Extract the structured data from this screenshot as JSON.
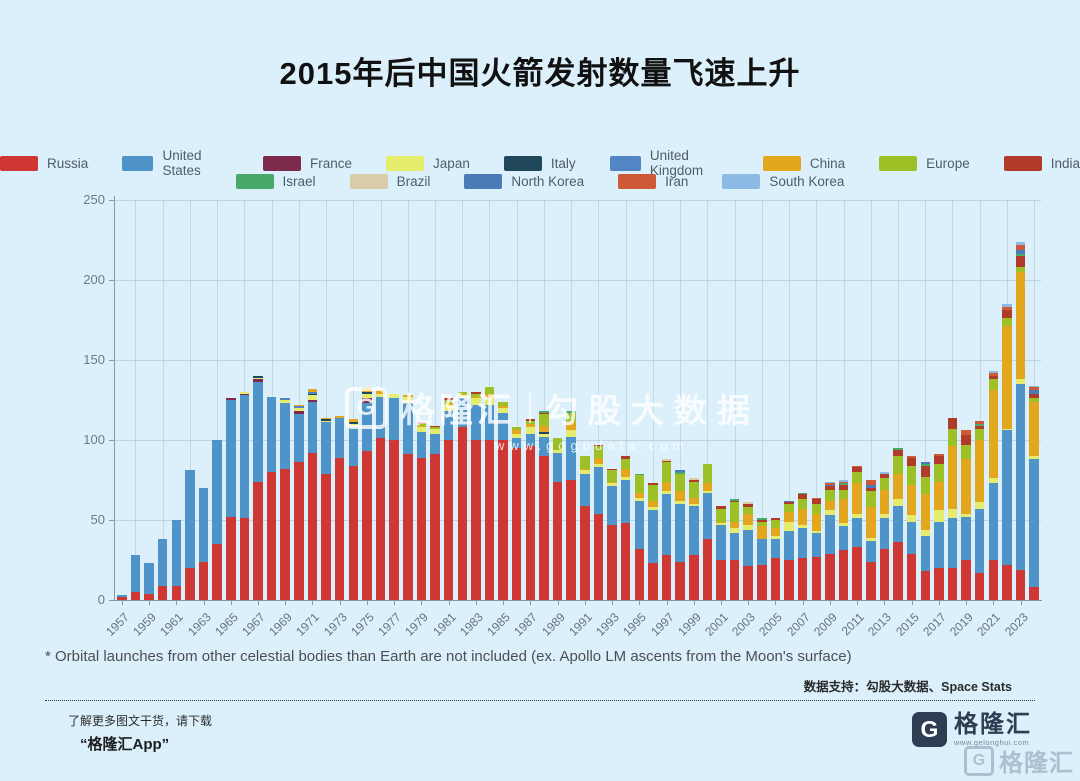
{
  "page": {
    "title": "2015年后中国火箭发射数量飞速上升",
    "footnote": "* Orbital launches from other celestial bodies than Earth are not included (ex. Apollo LM ascents from the Moon's surface)",
    "data_support": "数据支持：勾股大数据、Space Stats",
    "promo_line1": "了解更多图文干货，请下载",
    "promo_line2": "“格隆汇App”",
    "brand_g": "G",
    "brand_name": "格隆汇",
    "brand_url": "www.gelonghui.com",
    "corner_watermark": "格隆汇",
    "watermark_brand": "格隆汇",
    "watermark_name": "勾股大数据",
    "watermark_url": "www.gogudata.com"
  },
  "chart_data": {
    "type": "bar",
    "stacked": true,
    "title": "2015年后中国火箭发射数量飞速上升",
    "xlabel": "",
    "ylabel": "",
    "ylim": [
      0,
      250
    ],
    "yticks": [
      0,
      50,
      100,
      150,
      200,
      250
    ],
    "grid": true,
    "legend_position": "top",
    "x_start_year": 1957,
    "x_end_year": 2024,
    "x_tick_labels": [
      "1957",
      "1959",
      "1961",
      "1963",
      "1965",
      "1967",
      "1969",
      "1971",
      "1973",
      "1975",
      "1977",
      "1979",
      "1981",
      "1983",
      "1985",
      "1987",
      "1989",
      "1991",
      "1993",
      "1995",
      "1997",
      "1999",
      "2001",
      "2003",
      "2005",
      "2007",
      "2009",
      "2011",
      "2013",
      "2015",
      "2017",
      "2019",
      "2021",
      "2023"
    ],
    "series": [
      {
        "name": "Russia",
        "color": "#cf3733",
        "values": [
          2,
          5,
          4,
          9,
          9,
          20,
          24,
          35,
          52,
          51,
          74,
          80,
          82,
          86,
          92,
          79,
          89,
          84,
          93,
          101,
          100,
          91,
          89,
          91,
          100,
          108,
          100,
          100,
          100,
          95,
          96,
          90,
          74,
          75,
          59,
          54,
          47,
          48,
          32,
          23,
          28,
          24,
          28,
          38,
          25,
          25,
          21,
          22,
          26,
          25,
          26,
          27,
          29,
          31,
          33,
          24,
          32,
          36,
          29,
          18,
          20,
          20,
          25,
          17,
          25,
          22,
          19,
          8
        ]
      },
      {
        "name": "United States",
        "color": "#4e94c8",
        "values": [
          1,
          23,
          19,
          29,
          41,
          61,
          46,
          65,
          73,
          77,
          62,
          47,
          41,
          30,
          32,
          32,
          25,
          24,
          30,
          26,
          26,
          32,
          16,
          13,
          18,
          18,
          22,
          22,
          17,
          6,
          8,
          12,
          18,
          27,
          20,
          29,
          24,
          27,
          30,
          33,
          38,
          36,
          31,
          29,
          22,
          17,
          23,
          16,
          12,
          18,
          19,
          15,
          24,
          15,
          18,
          13,
          19,
          23,
          20,
          22,
          29,
          31,
          27,
          40,
          48,
          84,
          116,
          80
        ]
      },
      {
        "name": "France",
        "color": "#7e2a4d",
        "values": [
          0,
          0,
          0,
          0,
          0,
          0,
          0,
          0,
          1,
          1,
          2,
          0,
          0,
          2,
          1,
          0,
          0,
          0,
          3,
          0,
          0,
          0,
          0,
          0,
          0,
          0,
          0,
          0,
          0,
          0,
          0,
          0,
          0,
          0,
          0,
          0,
          0,
          0,
          0,
          0,
          0,
          0,
          0,
          0,
          0,
          0,
          0,
          0,
          0,
          0,
          0,
          0,
          0,
          0,
          0,
          0,
          0,
          0,
          0,
          0,
          0,
          0,
          0,
          0,
          0,
          0,
          0,
          0
        ]
      },
      {
        "name": "Japan",
        "color": "#e5ec6d",
        "values": [
          0,
          0,
          0,
          0,
          0,
          0,
          0,
          0,
          0,
          1,
          1,
          0,
          2,
          2,
          3,
          1,
          0,
          2,
          3,
          2,
          3,
          4,
          3,
          3,
          4,
          2,
          4,
          4,
          3,
          3,
          4,
          2,
          2,
          4,
          2,
          2,
          2,
          2,
          2,
          2,
          2,
          2,
          1,
          1,
          1,
          3,
          3,
          0,
          2,
          6,
          2,
          1,
          3,
          2,
          3,
          2,
          3,
          4,
          4,
          4,
          7,
          6,
          2,
          4,
          3,
          1,
          3,
          2
        ]
      },
      {
        "name": "Italy",
        "color": "#20485a",
        "values": [
          0,
          0,
          0,
          0,
          0,
          0,
          0,
          0,
          0,
          0,
          1,
          0,
          0,
          0,
          1,
          1,
          0,
          1,
          1,
          0,
          0,
          0,
          0,
          0,
          0,
          0,
          0,
          0,
          0,
          0,
          0,
          1,
          0,
          0,
          0,
          0,
          0,
          0,
          0,
          0,
          0,
          0,
          0,
          0,
          0,
          0,
          0,
          0,
          0,
          0,
          0,
          0,
          0,
          0,
          0,
          0,
          0,
          0,
          0,
          0,
          0,
          0,
          0,
          0,
          0,
          0,
          0,
          0
        ]
      },
      {
        "name": "United Kingdom",
        "color": "#5185c4",
        "values": [
          0,
          0,
          0,
          0,
          0,
          0,
          0,
          0,
          0,
          0,
          0,
          0,
          1,
          1,
          1,
          0,
          0,
          0,
          0,
          0,
          0,
          0,
          0,
          0,
          0,
          0,
          0,
          0,
          0,
          0,
          0,
          0,
          0,
          0,
          0,
          0,
          0,
          0,
          0,
          0,
          0,
          0,
          0,
          0,
          0,
          0,
          0,
          0,
          0,
          0,
          0,
          0,
          0,
          0,
          0,
          0,
          0,
          0,
          0,
          0,
          0,
          0,
          0,
          0,
          0,
          0,
          0,
          0
        ]
      },
      {
        "name": "China",
        "color": "#e2a71d",
        "values": [
          0,
          0,
          0,
          0,
          0,
          0,
          0,
          0,
          0,
          0,
          0,
          0,
          0,
          1,
          2,
          1,
          1,
          2,
          3,
          2,
          0,
          1,
          1,
          0,
          1,
          1,
          1,
          3,
          1,
          2,
          2,
          4,
          0,
          5,
          1,
          4,
          1,
          5,
          3,
          4,
          6,
          6,
          4,
          5,
          1,
          4,
          7,
          8,
          5,
          6,
          10,
          11,
          6,
          15,
          19,
          19,
          15,
          16,
          19,
          22,
          18,
          39,
          34,
          39,
          55,
          64,
          67,
          34
        ]
      },
      {
        "name": "Europe",
        "color": "#9cc025",
        "values": [
          0,
          0,
          0,
          0,
          0,
          0,
          0,
          0,
          0,
          0,
          0,
          0,
          0,
          0,
          0,
          0,
          0,
          0,
          0,
          0,
          0,
          0,
          1,
          1,
          2,
          1,
          2,
          4,
          3,
          2,
          2,
          7,
          7,
          6,
          8,
          7,
          7,
          6,
          11,
          10,
          12,
          11,
          10,
          12,
          8,
          12,
          4,
          3,
          5,
          5,
          6,
          6,
          7,
          6,
          7,
          10,
          7,
          11,
          12,
          11,
          11,
          11,
          9,
          7,
          7,
          5,
          3,
          2
        ]
      },
      {
        "name": "India",
        "color": "#b03b29",
        "values": [
          0,
          0,
          0,
          0,
          0,
          0,
          0,
          0,
          0,
          0,
          0,
          0,
          0,
          0,
          0,
          0,
          0,
          0,
          0,
          0,
          0,
          0,
          1,
          1,
          1,
          0,
          1,
          0,
          0,
          0,
          1,
          1,
          0,
          0,
          0,
          1,
          1,
          2,
          0,
          1,
          1,
          0,
          1,
          0,
          2,
          1,
          2,
          1,
          1,
          1,
          3,
          3,
          2,
          3,
          3,
          2,
          3,
          4,
          5,
          7,
          5,
          7,
          6,
          2,
          2,
          5,
          7,
          3
        ]
      },
      {
        "name": "Israel",
        "color": "#48a96b",
        "values": [
          0,
          0,
          0,
          0,
          0,
          0,
          0,
          0,
          0,
          0,
          0,
          0,
          0,
          0,
          0,
          0,
          0,
          0,
          0,
          0,
          0,
          0,
          0,
          0,
          0,
          0,
          0,
          0,
          0,
          0,
          0,
          1,
          0,
          1,
          0,
          0,
          0,
          0,
          1,
          0,
          0,
          1,
          0,
          0,
          0,
          1,
          0,
          1,
          0,
          0,
          1,
          0,
          0,
          1,
          0,
          0,
          0,
          1,
          0,
          1,
          0,
          0,
          0,
          1,
          0,
          0,
          1,
          0
        ]
      },
      {
        "name": "Brazil",
        "color": "#d8cda6",
        "values": [
          0,
          0,
          0,
          0,
          0,
          0,
          0,
          0,
          0,
          0,
          0,
          0,
          0,
          0,
          0,
          0,
          0,
          0,
          0,
          0,
          0,
          0,
          0,
          0,
          0,
          0,
          0,
          0,
          0,
          0,
          0,
          0,
          0,
          0,
          0,
          0,
          0,
          0,
          0,
          0,
          1,
          0,
          1,
          0,
          0,
          0,
          1,
          0,
          0,
          0,
          0,
          0,
          0,
          0,
          0,
          0,
          0,
          0,
          0,
          0,
          0,
          0,
          0,
          0,
          0,
          0,
          0,
          0
        ]
      },
      {
        "name": "North Korea",
        "color": "#4a7ab7",
        "values": [
          0,
          0,
          0,
          0,
          0,
          0,
          0,
          0,
          0,
          0,
          0,
          0,
          0,
          0,
          0,
          0,
          0,
          0,
          0,
          0,
          0,
          0,
          0,
          0,
          0,
          0,
          0,
          0,
          0,
          0,
          0,
          0,
          0,
          0,
          0,
          0,
          0,
          0,
          0,
          0,
          0,
          1,
          0,
          0,
          0,
          0,
          0,
          0,
          0,
          1,
          0,
          0,
          1,
          0,
          0,
          2,
          0,
          0,
          0,
          1,
          0,
          0,
          0,
          0,
          0,
          0,
          3,
          2
        ]
      },
      {
        "name": "Iran",
        "color": "#cd5a36",
        "values": [
          0,
          0,
          0,
          0,
          0,
          0,
          0,
          0,
          0,
          0,
          0,
          0,
          0,
          0,
          0,
          0,
          0,
          0,
          0,
          0,
          0,
          0,
          0,
          0,
          0,
          0,
          0,
          0,
          0,
          0,
          0,
          0,
          0,
          0,
          0,
          0,
          0,
          0,
          0,
          0,
          0,
          0,
          0,
          0,
          0,
          0,
          0,
          0,
          0,
          0,
          0,
          1,
          1,
          1,
          1,
          3,
          0,
          0,
          1,
          0,
          1,
          0,
          3,
          2,
          2,
          2,
          3,
          2
        ]
      },
      {
        "name": "South Korea",
        "color": "#8cbae4",
        "values": [
          0,
          0,
          0,
          0,
          0,
          0,
          0,
          0,
          0,
          0,
          0,
          0,
          0,
          0,
          0,
          0,
          0,
          0,
          0,
          0,
          0,
          0,
          0,
          0,
          0,
          0,
          0,
          0,
          0,
          0,
          0,
          0,
          0,
          0,
          0,
          0,
          0,
          0,
          0,
          0,
          0,
          0,
          0,
          0,
          0,
          0,
          0,
          0,
          0,
          0,
          0,
          0,
          1,
          1,
          0,
          0,
          1,
          0,
          0,
          0,
          0,
          0,
          0,
          0,
          1,
          2,
          2,
          1
        ]
      }
    ]
  }
}
